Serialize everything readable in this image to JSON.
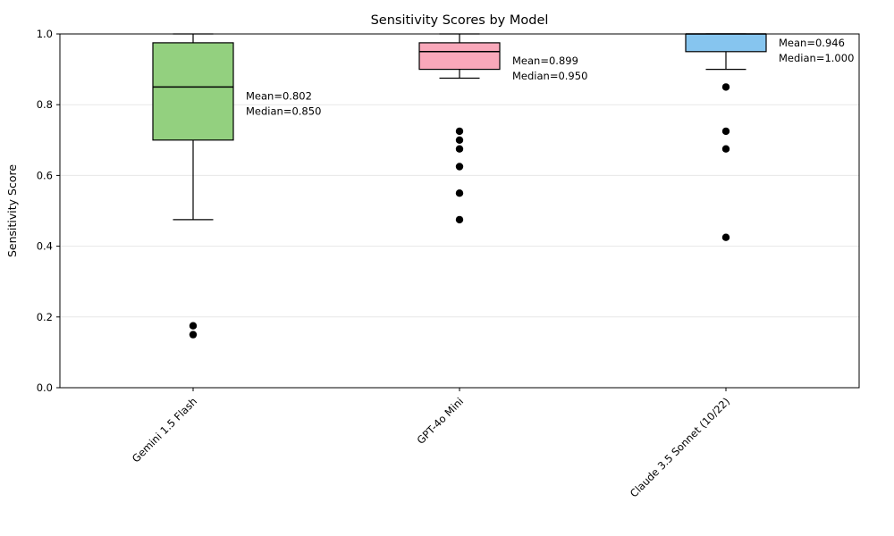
{
  "chart_data": {
    "type": "boxplot",
    "title": "Sensitivity Scores by Model",
    "ylabel": "Sensitivity Score",
    "xlabel": "",
    "ylim": [
      0.0,
      1.0
    ],
    "yticks": [
      0.0,
      0.2,
      0.4,
      0.6,
      0.8,
      1.0
    ],
    "grid": "horizontal",
    "grid_color": "#e7e7e7",
    "spine_color": "#000000",
    "outlier_color": "#000000",
    "categories": [
      "Gemini 1.5 Flash",
      "GPT-4o Mini",
      "Claude 3.5 Sonnet (10/22)"
    ],
    "series": [
      {
        "name": "Gemini 1.5 Flash",
        "fill_color": "#93d07f",
        "edge_color": "#000000",
        "whisker_low": 0.475,
        "q1": 0.7,
        "median": 0.85,
        "q3": 0.975,
        "whisker_high": 1.0,
        "mean": 0.802,
        "outliers": [
          0.175,
          0.15
        ],
        "annotation_lines": [
          "Mean=0.802",
          "Median=0.850"
        ]
      },
      {
        "name": "GPT-4o Mini",
        "fill_color": "#f9a8ba",
        "edge_color": "#000000",
        "whisker_low": 0.875,
        "q1": 0.9,
        "median": 0.95,
        "q3": 0.975,
        "whisker_high": 1.0,
        "mean": 0.899,
        "outliers": [
          0.725,
          0.7,
          0.675,
          0.625,
          0.55,
          0.475
        ],
        "annotation_lines": [
          "Mean=0.899",
          "Median=0.950"
        ]
      },
      {
        "name": "Claude 3.5 Sonnet (10/22)",
        "fill_color": "#86c5ef",
        "edge_color": "#000000",
        "whisker_low": 0.9,
        "q1": 0.95,
        "median": 1.0,
        "q3": 1.0,
        "whisker_high": 1.0,
        "mean": 0.946,
        "outliers": [
          0.85,
          0.725,
          0.675,
          0.425
        ],
        "annotation_lines": [
          "Mean=0.946",
          "Median=1.000"
        ]
      }
    ]
  }
}
